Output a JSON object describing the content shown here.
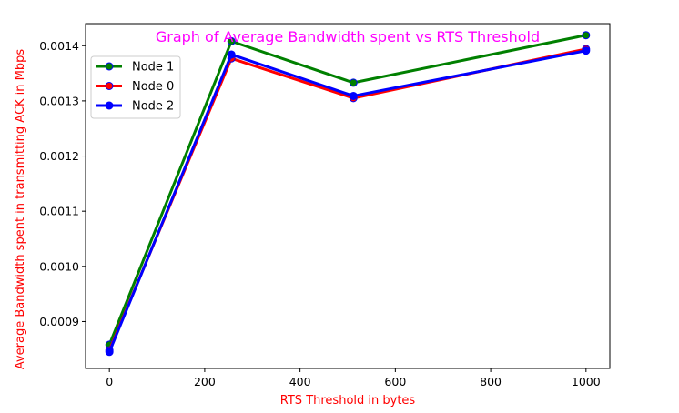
{
  "chart_data": {
    "type": "line",
    "title": "Graph of Average Bandwidth spent vs RTS Threshold",
    "xlabel": "RTS Threshold in bytes",
    "ylabel": "Average Bandwidth spent in transmitting ACK in Mbps",
    "x": [
      0,
      256,
      512,
      1000
    ],
    "xlim": [
      -50,
      1050
    ],
    "ylim": [
      0.000815,
      0.00144
    ],
    "xticks": [
      0,
      200,
      400,
      600,
      800,
      1000
    ],
    "xtick_labels": [
      "0",
      "200",
      "400",
      "600",
      "800",
      "1000"
    ],
    "yticks": [
      0.0009,
      0.001,
      0.0011,
      0.0012,
      0.0013,
      0.0014
    ],
    "ytick_labels": [
      "0.0009",
      "0.0010",
      "0.0011",
      "0.0012",
      "0.0013",
      "0.0014"
    ],
    "grid": false,
    "legend_position": "top-left",
    "series": [
      {
        "name": "Node 1",
        "values": [
          0.000858,
          0.001408,
          0.001333,
          0.001419
        ],
        "color": "#008000"
      },
      {
        "name": "Node 0",
        "values": [
          0.000848,
          0.001377,
          0.001305,
          0.001394
        ],
        "color": "#ff0000"
      },
      {
        "name": "Node 2",
        "values": [
          0.000845,
          0.001384,
          0.001309,
          0.001391
        ],
        "color": "#0000ff"
      }
    ],
    "colors": {
      "title": "#ff00ff",
      "axis_labels": "#ff0000",
      "marker_edge": "#0000ff"
    }
  }
}
